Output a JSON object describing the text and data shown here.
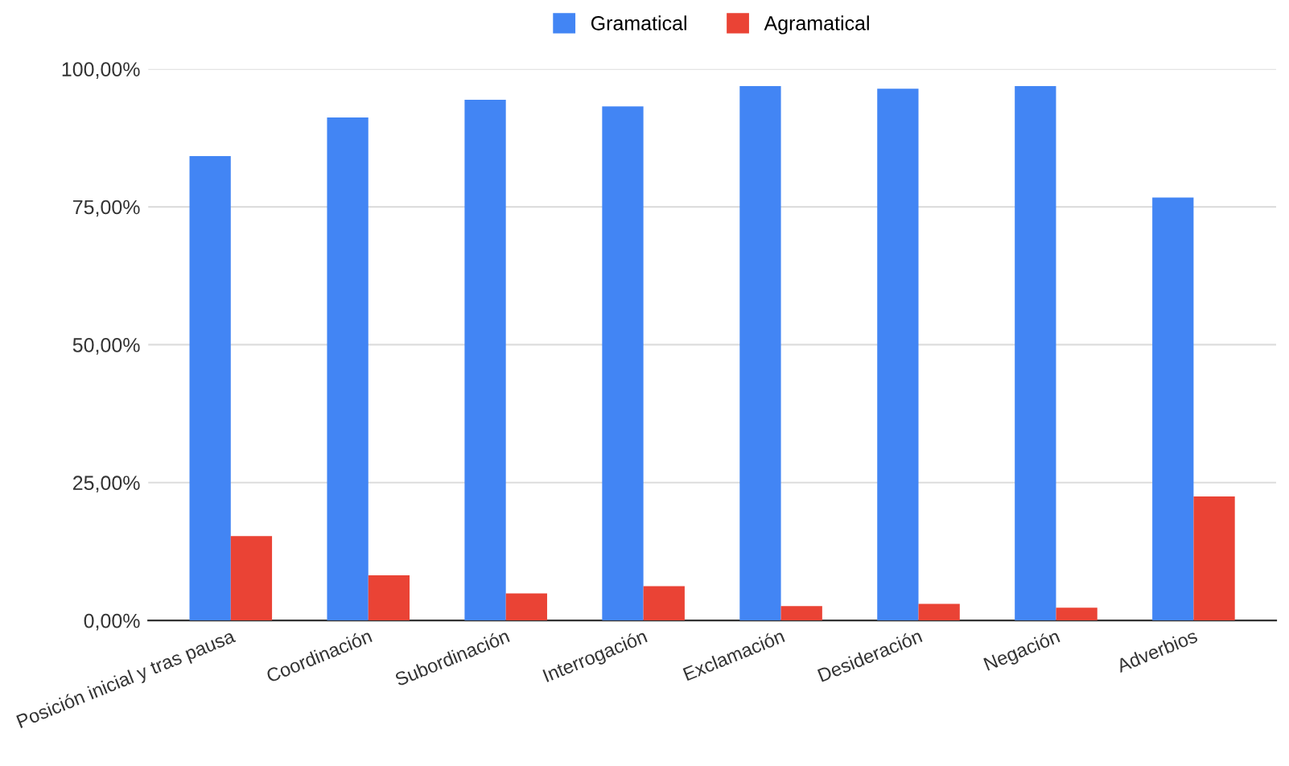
{
  "chart_data": {
    "type": "bar",
    "categories": [
      "Posición inicial y tras pausa",
      "Coordinación",
      "Subordinación",
      "Interrogación",
      "Exclamación",
      "Desideración",
      "Negación",
      "Adverbios"
    ],
    "series": [
      {
        "name": "Gramatical",
        "color": "#4285f4",
        "values": [
          84.2,
          91.2,
          94.4,
          93.2,
          96.9,
          96.4,
          96.9,
          76.7
        ]
      },
      {
        "name": "Agramatical",
        "color": "#ea4335",
        "values": [
          15.3,
          8.2,
          4.9,
          6.2,
          2.6,
          3.0,
          2.3,
          22.5
        ]
      }
    ],
    "ylim": [
      0,
      100
    ],
    "yticks": [
      {
        "value": 0,
        "label": "0,00%"
      },
      {
        "value": 25,
        "label": "25,00%"
      },
      {
        "value": 50,
        "label": "50,00%"
      },
      {
        "value": 75,
        "label": "75,00%"
      },
      {
        "value": 100,
        "label": "100,00%"
      }
    ],
    "grid": "y",
    "legend": "top"
  }
}
